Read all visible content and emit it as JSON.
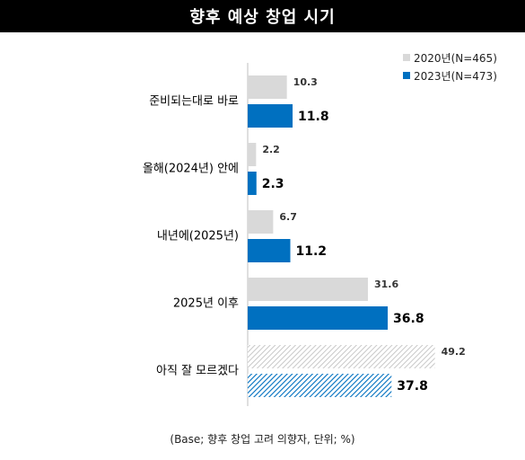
{
  "chart_data": {
    "type": "bar",
    "orientation": "horizontal",
    "title": "향후 예상 창업 시기",
    "categories": [
      "준비되는대로 바로",
      "올해(2024년) 안에",
      "내년에(2025년)",
      "2025년 이후",
      "아직 잘 모르겠다"
    ],
    "series": [
      {
        "name": "2020년(N=465)",
        "values": [
          10.3,
          2.2,
          6.7,
          31.6,
          49.2
        ],
        "color": "#d9d9d9"
      },
      {
        "name": "2023년(N=473)",
        "values": [
          11.8,
          2.3,
          11.2,
          36.8,
          37.8
        ],
        "color": "#0070c0"
      }
    ],
    "hatched_category": "아직 잘 모르겠다",
    "legend_position": "top-right",
    "grid": false,
    "note": "(Base; 향후 창업 고려 의향자, 단위; %)"
  }
}
